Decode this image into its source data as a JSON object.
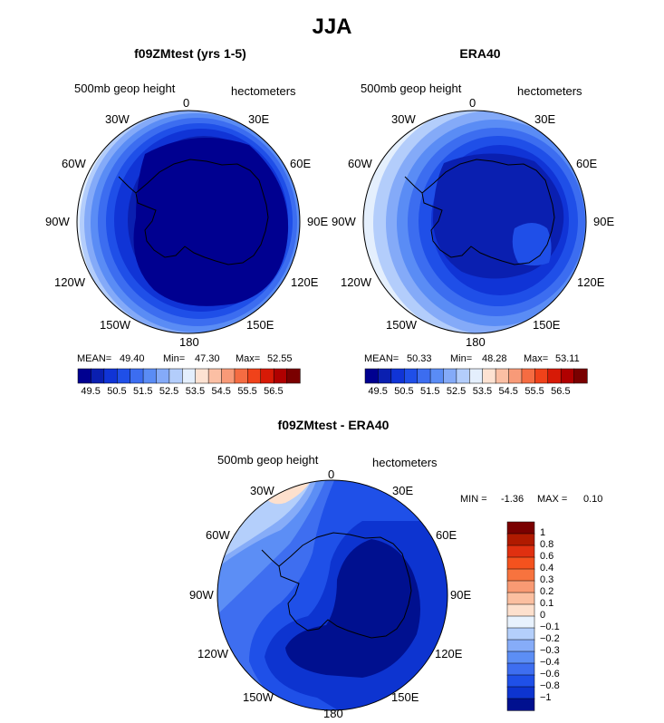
{
  "title": "JJA",
  "panels": [
    {
      "title": "f09ZMtest (yrs 1-5)",
      "field_label": "500mb geop height",
      "units": "hectometers",
      "stats": {
        "mean_label": "MEAN=",
        "mean": "49.40",
        "min_label": "Min=",
        "min": "47.30",
        "max_label": "Max=",
        "max": "52.55"
      }
    },
    {
      "title": "ERA40",
      "field_label": "500mb geop height",
      "units": "hectometers",
      "stats": {
        "mean_label": "MEAN=",
        "mean": "50.33",
        "min_label": "Min=",
        "min": "48.28",
        "max_label": "Max=",
        "max": "53.11"
      }
    }
  ],
  "diff_panel": {
    "title": "f09ZMtest - ERA40",
    "field_label": "500mb geop height",
    "units": "hectometers",
    "min_label": "MIN =",
    "min": "-1.36",
    "max_label": "MAX =",
    "max": "0.10"
  },
  "lon_labels": [
    "0",
    "30E",
    "60E",
    "90E",
    "120E",
    "150E",
    "180",
    "150W",
    "120W",
    "90W",
    "60W",
    "30W"
  ],
  "chart_data": [
    {
      "type": "heatmap",
      "title": "f09ZMtest (yrs 1-5)",
      "projection": "south-polar-stereographic",
      "variable": "500mb geop height",
      "units": "hectometers",
      "colorbar_ticks": [
        "49.5",
        "50.5",
        "51.5",
        "52.5",
        "53.5",
        "54.5",
        "55.5",
        "56.5"
      ],
      "contour_levels": [
        49.0,
        49.5,
        50.0,
        50.5,
        51.0,
        51.5,
        52.0,
        52.5,
        53.0,
        53.5,
        54.0,
        54.5,
        55.0,
        55.5,
        56.0,
        56.5
      ],
      "colors": [
        "#000090",
        "#0a1fb0",
        "#1034d6",
        "#1f4fe8",
        "#3c6df0",
        "#5a8cf5",
        "#84aaf8",
        "#b3cdfb",
        "#e4effd",
        "#fde2d2",
        "#fbbfa4",
        "#f89a78",
        "#f56c42",
        "#f0421a",
        "#d71a06",
        "#b00000",
        "#7a0000"
      ],
      "mean": 49.4,
      "min": 47.3,
      "max": 52.55
    },
    {
      "type": "heatmap",
      "title": "ERA40",
      "projection": "south-polar-stereographic",
      "variable": "500mb geop height",
      "units": "hectometers",
      "colorbar_ticks": [
        "49.5",
        "50.5",
        "51.5",
        "52.5",
        "53.5",
        "54.5",
        "55.5",
        "56.5"
      ],
      "contour_levels": [
        49.0,
        49.5,
        50.0,
        50.5,
        51.0,
        51.5,
        52.0,
        52.5,
        53.0,
        53.5,
        54.0,
        54.5,
        55.0,
        55.5,
        56.0,
        56.5
      ],
      "colors": [
        "#000090",
        "#0a1fb0",
        "#1034d6",
        "#1f4fe8",
        "#3c6df0",
        "#5a8cf5",
        "#84aaf8",
        "#b3cdfb",
        "#e4effd",
        "#fde2d2",
        "#fbbfa4",
        "#f89a78",
        "#f56c42",
        "#f0421a",
        "#d71a06",
        "#b00000",
        "#7a0000"
      ],
      "mean": 50.33,
      "min": 48.28,
      "max": 53.11
    },
    {
      "type": "heatmap",
      "title": "f09ZMtest - ERA40",
      "projection": "south-polar-stereographic",
      "variable": "500mb geop height",
      "units": "hectometers",
      "colorbar_ticks": [
        "1",
        "0.8",
        "0.6",
        "0.4",
        "0.3",
        "0.2",
        "0.1",
        "0",
        "−0.1",
        "−0.2",
        "−0.3",
        "−0.4",
        "−0.6",
        "−0.8",
        "−1"
      ],
      "colors": [
        "#7a0000",
        "#b01a00",
        "#e03010",
        "#f4521e",
        "#f7733e",
        "#f99a73",
        "#fbbfa0",
        "#fde0cd",
        "#e8f2fd",
        "#b4cffb",
        "#86acf8",
        "#5c8ef5",
        "#3e6ef0",
        "#1f50e8",
        "#0d34d0",
        "#00108f"
      ],
      "min": -1.36,
      "max": 0.1
    }
  ]
}
